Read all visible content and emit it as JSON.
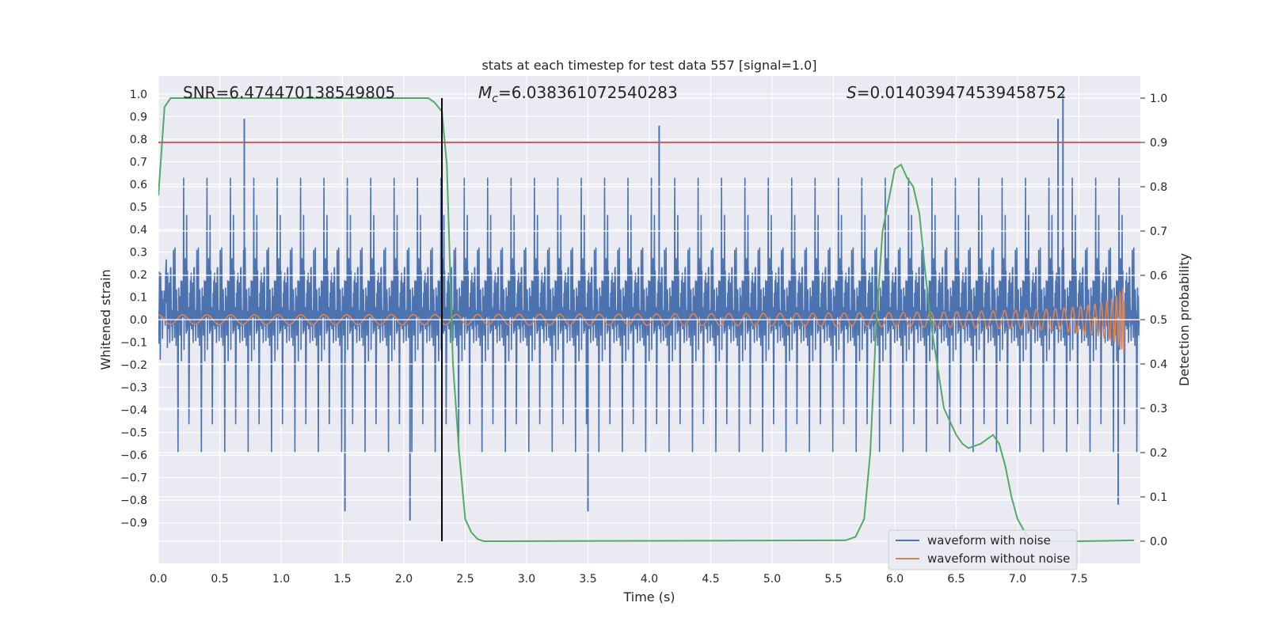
{
  "chart_data": {
    "type": "line",
    "title": "stats at each timestep for test data 557 [signal=1.0]",
    "xlabel": "Time (s)",
    "ylabel_left": "Whitened strain",
    "ylabel_right": "Detection probability",
    "xlim": [
      0.0,
      8.0
    ],
    "ylim_left": [
      -1.08,
      1.08
    ],
    "ylim_right": [
      -0.05,
      1.05
    ],
    "x_ticks": [
      "0.0",
      "0.5",
      "1.0",
      "1.5",
      "2.0",
      "2.5",
      "3.0",
      "3.5",
      "4.0",
      "4.5",
      "5.0",
      "5.5",
      "6.0",
      "6.5",
      "7.0",
      "7.5"
    ],
    "y_ticks_left": [
      "1.0",
      "0.9",
      "0.8",
      "0.7",
      "0.6",
      "0.5",
      "0.4",
      "0.3",
      "0.2",
      "0.1",
      "0.0",
      "−0.1",
      "−0.2",
      "−0.3",
      "−0.4",
      "−0.5",
      "−0.6",
      "−0.7",
      "−0.8",
      "−0.9"
    ],
    "y_ticks_right": [
      "1.0",
      "0.9",
      "0.8",
      "0.7",
      "0.6",
      "0.5",
      "0.4",
      "0.3",
      "0.2",
      "0.1",
      "0.0"
    ],
    "grid": true,
    "annotations": {
      "snr": "SNR=6.474470138549805",
      "mc_symbol": "M",
      "mc_sub": "c",
      "mc_value": "=6.038361072540283",
      "s_symbol": "S",
      "s_value": "=0.014039474539458752"
    },
    "threshold_right": 0.9,
    "marker_time": 2.31,
    "merger_time": 7.87,
    "series": [
      {
        "name": "waveform with noise",
        "color": "#4c72b0",
        "envelope": [
          0.45,
          -0.45
        ],
        "max": 1.0,
        "min": -0.89
      },
      {
        "name": "waveform without noise",
        "color": "#dd8452",
        "amplitude_start": 0.012,
        "amplitude_peak": 0.16
      },
      {
        "color": "#55a868",
        "x": [
          0.0,
          0.05,
          0.1,
          0.2,
          0.3,
          2.2,
          2.25,
          2.31,
          2.35,
          2.4,
          2.45,
          2.5,
          2.55,
          2.6,
          2.65,
          2.7,
          5.6,
          5.68,
          5.75,
          5.8,
          5.85,
          5.9,
          6.0,
          6.05,
          6.1,
          6.15,
          6.2,
          6.25,
          6.3,
          6.4,
          6.5,
          6.55,
          6.6,
          6.7,
          6.8,
          6.85,
          6.9,
          6.95,
          7.0,
          7.1,
          7.2,
          7.5,
          7.95
        ],
        "y": [
          0.78,
          0.98,
          1.0,
          1.0,
          1.0,
          1.0,
          0.99,
          0.97,
          0.85,
          0.4,
          0.2,
          0.05,
          0.02,
          0.005,
          0.0,
          0.0,
          0.002,
          0.01,
          0.05,
          0.2,
          0.5,
          0.7,
          0.84,
          0.85,
          0.82,
          0.8,
          0.74,
          0.6,
          0.48,
          0.3,
          0.24,
          0.22,
          0.21,
          0.22,
          0.24,
          0.22,
          0.17,
          0.1,
          0.05,
          0.0,
          0.0,
          0.0,
          0.002
        ]
      }
    ],
    "legend_position": "lower-right",
    "legend": [
      "waveform with noise",
      "waveform without noise"
    ]
  }
}
